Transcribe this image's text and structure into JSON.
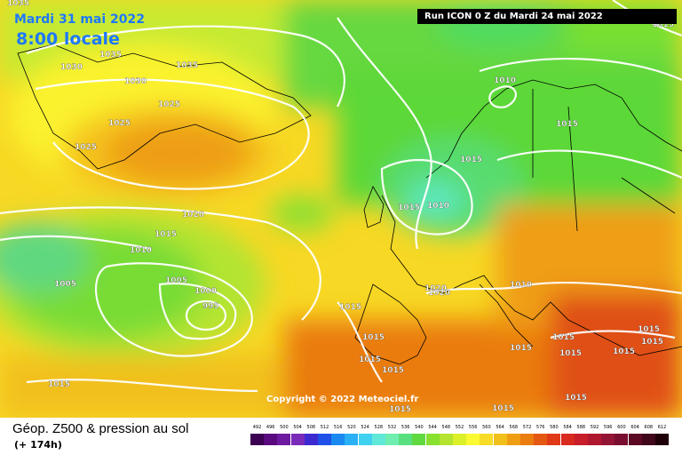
{
  "header": {
    "date": "Mardi 31 mai 2022",
    "time": "8:00 locale",
    "run": "Run ICON 0 Z du Mardi 24 mai 2022"
  },
  "copyright": "Copyright © 2022 Meteociel.fr",
  "footer": {
    "title": "Géop. Z500 & pression au sol",
    "subtitle": "(+ 174h)"
  },
  "legend": {
    "values": [
      "492",
      "496",
      "500",
      "504",
      "508",
      "512",
      "516",
      "520",
      "524",
      "528",
      "532",
      "536",
      "540",
      "544",
      "548",
      "552",
      "556",
      "560",
      "564",
      "568",
      "572",
      "576",
      "580",
      "584",
      "588",
      "592",
      "596",
      "600",
      "604",
      "608",
      "612"
    ],
    "colors": [
      "#3b0052",
      "#5a0a80",
      "#6d1aa0",
      "#7a2ab8",
      "#3c2ad0",
      "#2050e8",
      "#1a8af0",
      "#2ab0f5",
      "#40d0f0",
      "#60e8d8",
      "#70eeb0",
      "#58e080",
      "#60d840",
      "#88e030",
      "#b4e430",
      "#dcf02a",
      "#fafa32",
      "#f7dc28",
      "#f2c01a",
      "#ef9e14",
      "#ea7c10",
      "#e45812",
      "#e03a18",
      "#d82a1e",
      "#c81e2a",
      "#b01830",
      "#941436",
      "#7a0e30",
      "#5c0a24",
      "#40061a",
      "#200008"
    ]
  },
  "pressure_labels": [
    "1035",
    "1035",
    "1035",
    "1030",
    "1030",
    "1025",
    "1025",
    "1025",
    "1020",
    "1015",
    "1010",
    "1005",
    "1005",
    "1000",
    "995",
    "1015",
    "1015",
    "1010",
    "1015",
    "1015",
    "1010",
    "1015",
    "1015",
    "1020",
    "1020",
    "1010",
    "1015",
    "1015",
    "1015",
    "1015",
    "1015",
    "1015",
    "1015",
    "1015",
    "1015",
    "1015",
    "1015",
    "1015"
  ]
}
